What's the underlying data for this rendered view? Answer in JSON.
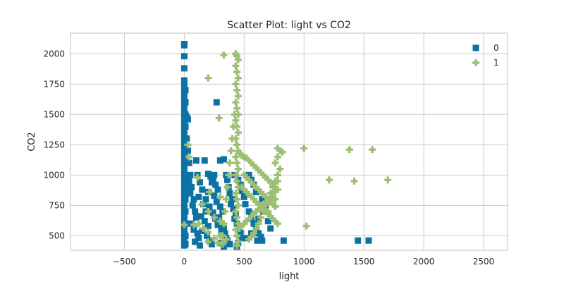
{
  "chart_data": {
    "type": "scatter",
    "title": "Scatter Plot: light vs CO2",
    "xlabel": "light",
    "ylabel": "CO2",
    "xlim": [
      -950,
      2700
    ],
    "ylim": [
      380,
      2170
    ],
    "xticks": [
      -500,
      0,
      500,
      1000,
      1500,
      2000,
      2500
    ],
    "xtick_labels": [
      "−500",
      "0",
      "500",
      "1000",
      "1500",
      "2000",
      "2500"
    ],
    "yticks": [
      500,
      750,
      1000,
      1250,
      1500,
      1750,
      2000
    ],
    "ytick_labels": [
      "500",
      "750",
      "1000",
      "1250",
      "1500",
      "1750",
      "2000"
    ],
    "grid": true,
    "legend_position": "top-right",
    "series": [
      {
        "name": "0",
        "marker": "square",
        "color": "#0b72a4",
        "points": [
          [
            0,
            2080
          ],
          [
            0,
            2070
          ],
          [
            0,
            1980
          ],
          [
            0,
            1880
          ],
          [
            0,
            1780
          ],
          [
            0,
            1750
          ],
          [
            0,
            1700
          ],
          [
            0,
            1650
          ],
          [
            0,
            1600
          ],
          [
            0,
            1550
          ],
          [
            0,
            1500
          ],
          [
            0,
            1450
          ],
          [
            0,
            1400
          ],
          [
            0,
            1350
          ],
          [
            0,
            1300
          ],
          [
            0,
            1250
          ],
          [
            0,
            1200
          ],
          [
            0,
            1150
          ],
          [
            0,
            1100
          ],
          [
            0,
            1050
          ],
          [
            0,
            1000
          ],
          [
            0,
            950
          ],
          [
            0,
            900
          ],
          [
            0,
            850
          ],
          [
            0,
            800
          ],
          [
            0,
            750
          ],
          [
            0,
            700
          ],
          [
            0,
            650
          ],
          [
            0,
            600
          ],
          [
            0,
            550
          ],
          [
            0,
            500
          ],
          [
            0,
            450
          ],
          [
            0,
            420
          ],
          [
            10,
            1700
          ],
          [
            10,
            1600
          ],
          [
            10,
            1500
          ],
          [
            10,
            1400
          ],
          [
            10,
            1300
          ],
          [
            10,
            1200
          ],
          [
            10,
            1100
          ],
          [
            10,
            1000
          ],
          [
            10,
            900
          ],
          [
            10,
            800
          ],
          [
            10,
            700
          ],
          [
            10,
            600
          ],
          [
            10,
            500
          ],
          [
            10,
            430
          ],
          [
            20,
            1480
          ],
          [
            30,
            1460
          ],
          [
            20,
            1300
          ],
          [
            30,
            1200
          ],
          [
            40,
            1100
          ],
          [
            50,
            1000
          ],
          [
            40,
            950
          ],
          [
            60,
            900
          ],
          [
            50,
            850
          ],
          [
            80,
            800
          ],
          [
            70,
            750
          ],
          [
            90,
            700
          ],
          [
            100,
            650
          ],
          [
            60,
            600
          ],
          [
            80,
            550
          ],
          [
            110,
            520
          ],
          [
            120,
            480
          ],
          [
            90,
            450
          ],
          [
            130,
            420
          ],
          [
            100,
            1120
          ],
          [
            110,
            1000
          ],
          [
            130,
            940
          ],
          [
            150,
            880
          ],
          [
            120,
            820
          ],
          [
            160,
            760
          ],
          [
            180,
            700
          ],
          [
            140,
            660
          ],
          [
            170,
            620
          ],
          [
            200,
            580
          ],
          [
            150,
            540
          ],
          [
            190,
            500
          ],
          [
            210,
            460
          ],
          [
            230,
            430
          ],
          [
            170,
            1120
          ],
          [
            200,
            1010
          ],
          [
            220,
            990
          ],
          [
            240,
            960
          ],
          [
            260,
            920
          ],
          [
            280,
            880
          ],
          [
            250,
            830
          ],
          [
            270,
            780
          ],
          [
            300,
            740
          ],
          [
            320,
            700
          ],
          [
            290,
            650
          ],
          [
            310,
            600
          ],
          [
            330,
            560
          ],
          [
            340,
            520
          ],
          [
            350,
            480
          ],
          [
            300,
            440
          ],
          [
            330,
            410
          ],
          [
            270,
            1600
          ],
          [
            330,
            1130
          ],
          [
            350,
            1000
          ],
          [
            360,
            960
          ],
          [
            370,
            900
          ],
          [
            380,
            850
          ],
          [
            400,
            800
          ],
          [
            390,
            760
          ],
          [
            410,
            720
          ],
          [
            430,
            680
          ],
          [
            420,
            640
          ],
          [
            440,
            600
          ],
          [
            460,
            560
          ],
          [
            470,
            520
          ],
          [
            480,
            480
          ],
          [
            450,
            440
          ],
          [
            440,
            410
          ],
          [
            300,
            1120
          ],
          [
            250,
            1000
          ],
          [
            230,
            940
          ],
          [
            200,
            860
          ],
          [
            180,
            800
          ],
          [
            210,
            740
          ],
          [
            240,
            690
          ],
          [
            260,
            640
          ],
          [
            280,
            590
          ],
          [
            310,
            540
          ],
          [
            340,
            500
          ],
          [
            360,
            460
          ],
          [
            380,
            430
          ],
          [
            420,
            1000
          ],
          [
            450,
            960
          ],
          [
            470,
            920
          ],
          [
            480,
            870
          ],
          [
            500,
            820
          ],
          [
            510,
            760
          ],
          [
            540,
            700
          ],
          [
            560,
            650
          ],
          [
            580,
            600
          ],
          [
            600,
            560
          ],
          [
            620,
            520
          ],
          [
            640,
            490
          ],
          [
            650,
            460
          ],
          [
            520,
            480
          ],
          [
            560,
            520
          ],
          [
            600,
            600
          ],
          [
            620,
            640
          ],
          [
            610,
            460
          ],
          [
            830,
            460
          ],
          [
            1450,
            460
          ],
          [
            1540,
            460
          ],
          [
            700,
            620
          ],
          [
            720,
            560
          ],
          [
            660,
            700
          ],
          [
            680,
            740
          ],
          [
            650,
            800
          ],
          [
            600,
            860
          ],
          [
            580,
            920
          ],
          [
            560,
            960
          ],
          [
            540,
            1000
          ]
        ]
      },
      {
        "name": "1",
        "marker": "plus",
        "color": "#9dbf74",
        "points": [
          [
            430,
            2000
          ],
          [
            440,
            1980
          ],
          [
            450,
            1950
          ],
          [
            430,
            1900
          ],
          [
            440,
            1850
          ],
          [
            450,
            1800
          ],
          [
            430,
            1750
          ],
          [
            440,
            1700
          ],
          [
            450,
            1650
          ],
          [
            430,
            1600
          ],
          [
            440,
            1550
          ],
          [
            450,
            1500
          ],
          [
            430,
            1450
          ],
          [
            440,
            1400
          ],
          [
            450,
            1350
          ],
          [
            430,
            1300
          ],
          [
            440,
            1250
          ],
          [
            450,
            1200
          ],
          [
            430,
            1150
          ],
          [
            440,
            1100
          ],
          [
            450,
            1050
          ],
          [
            430,
            1000
          ],
          [
            440,
            950
          ],
          [
            450,
            900
          ],
          [
            430,
            850
          ],
          [
            440,
            800
          ],
          [
            450,
            750
          ],
          [
            430,
            700
          ],
          [
            440,
            650
          ],
          [
            450,
            600
          ],
          [
            430,
            550
          ],
          [
            440,
            500
          ],
          [
            450,
            450
          ],
          [
            440,
            420
          ],
          [
            420,
            1500
          ],
          [
            410,
            1400
          ],
          [
            400,
            1300
          ],
          [
            390,
            1200
          ],
          [
            380,
            1100
          ],
          [
            370,
            1000
          ],
          [
            360,
            900
          ],
          [
            350,
            800
          ],
          [
            340,
            700
          ],
          [
            330,
            600
          ],
          [
            320,
            500
          ],
          [
            330,
            450
          ],
          [
            460,
            1180
          ],
          [
            480,
            1160
          ],
          [
            500,
            1150
          ],
          [
            520,
            1140
          ],
          [
            540,
            1120
          ],
          [
            560,
            1100
          ],
          [
            580,
            1080
          ],
          [
            600,
            1060
          ],
          [
            620,
            1040
          ],
          [
            640,
            1020
          ],
          [
            660,
            1000
          ],
          [
            680,
            980
          ],
          [
            700,
            960
          ],
          [
            720,
            940
          ],
          [
            740,
            920
          ],
          [
            760,
            900
          ],
          [
            780,
            880
          ],
          [
            760,
            860
          ],
          [
            740,
            840
          ],
          [
            720,
            820
          ],
          [
            700,
            800
          ],
          [
            680,
            780
          ],
          [
            660,
            760
          ],
          [
            640,
            740
          ],
          [
            620,
            720
          ],
          [
            600,
            700
          ],
          [
            580,
            680
          ],
          [
            560,
            660
          ],
          [
            540,
            640
          ],
          [
            520,
            620
          ],
          [
            500,
            600
          ],
          [
            480,
            580
          ],
          [
            460,
            560
          ],
          [
            480,
            900
          ],
          [
            500,
            880
          ],
          [
            520,
            860
          ],
          [
            540,
            840
          ],
          [
            560,
            820
          ],
          [
            580,
            800
          ],
          [
            600,
            780
          ],
          [
            620,
            760
          ],
          [
            640,
            740
          ],
          [
            660,
            720
          ],
          [
            680,
            700
          ],
          [
            700,
            680
          ],
          [
            720,
            660
          ],
          [
            740,
            640
          ],
          [
            760,
            620
          ],
          [
            780,
            600
          ],
          [
            500,
            1000
          ],
          [
            520,
            980
          ],
          [
            540,
            960
          ],
          [
            560,
            940
          ],
          [
            580,
            920
          ],
          [
            600,
            900
          ],
          [
            620,
            880
          ],
          [
            640,
            860
          ],
          [
            660,
            840
          ],
          [
            680,
            820
          ],
          [
            700,
            800
          ],
          [
            720,
            780
          ],
          [
            740,
            760
          ],
          [
            760,
            740
          ],
          [
            780,
            1220
          ],
          [
            800,
            1200
          ],
          [
            820,
            1190
          ],
          [
            780,
            1150
          ],
          [
            760,
            1100
          ],
          [
            800,
            1050
          ],
          [
            780,
            1000
          ],
          [
            760,
            950
          ],
          [
            740,
            900
          ],
          [
            720,
            850
          ],
          [
            700,
            800
          ],
          [
            680,
            750
          ],
          [
            660,
            700
          ],
          [
            640,
            650
          ],
          [
            620,
            600
          ],
          [
            600,
            560
          ],
          [
            580,
            520
          ],
          [
            560,
            490
          ],
          [
            540,
            470
          ],
          [
            330,
            1990
          ],
          [
            200,
            1800
          ],
          [
            290,
            1470
          ],
          [
            30,
            1250
          ],
          [
            40,
            1150
          ],
          [
            110,
            980
          ],
          [
            210,
            860
          ],
          [
            300,
            820
          ],
          [
            150,
            760
          ],
          [
            200,
            700
          ],
          [
            250,
            650
          ],
          [
            300,
            620
          ],
          [
            120,
            600
          ],
          [
            160,
            560
          ],
          [
            80,
            590
          ],
          [
            0,
            590
          ],
          [
            200,
            530
          ],
          [
            300,
            500
          ],
          [
            250,
            480
          ],
          [
            350,
            470
          ],
          [
            200,
            450
          ],
          [
            280,
            440
          ],
          [
            320,
            430
          ],
          [
            1000,
            1220
          ],
          [
            1380,
            1210
          ],
          [
            1570,
            1210
          ],
          [
            1210,
            960
          ],
          [
            1420,
            950
          ],
          [
            1700,
            960
          ],
          [
            1020,
            580
          ],
          [
            780,
            950
          ],
          [
            760,
            800
          ],
          [
            700,
            700
          ]
        ]
      }
    ]
  }
}
